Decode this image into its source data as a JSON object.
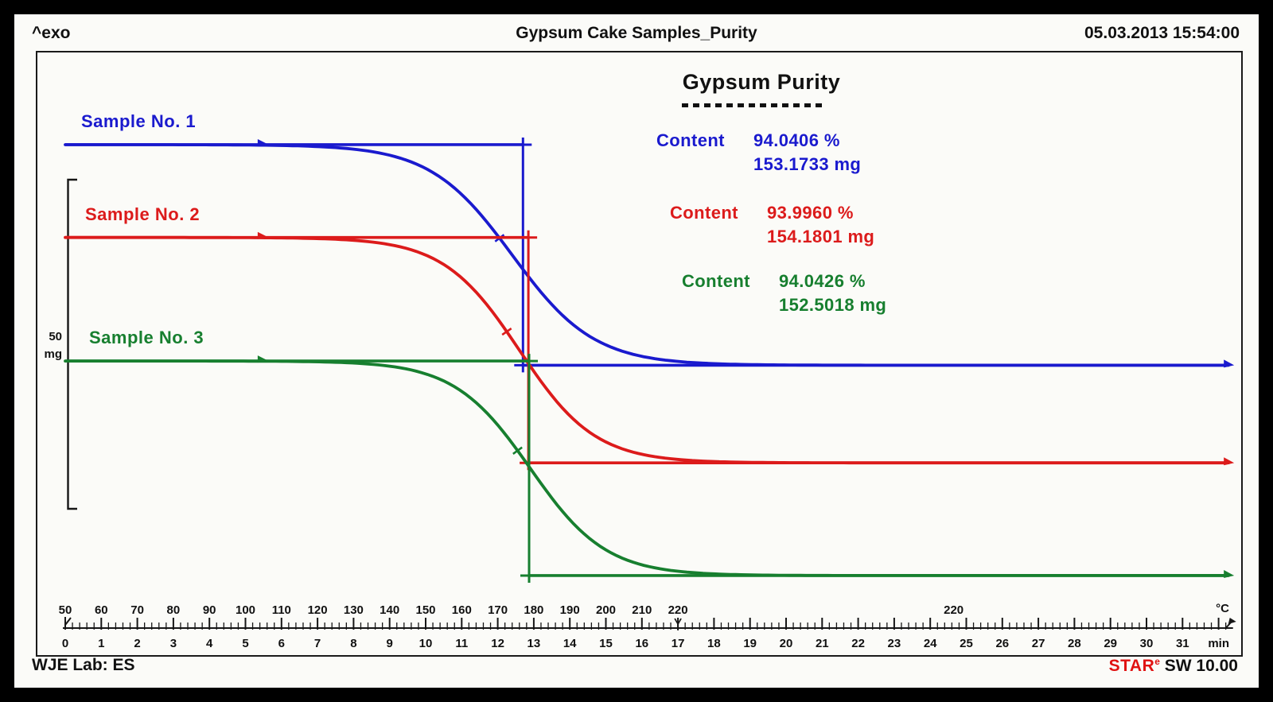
{
  "header": {
    "exo_label": "^exo",
    "title": "Gypsum Cake Samples_Purity",
    "datetime": "05.03.2013 15:54:00"
  },
  "footer": {
    "lab": "WJE Lab: ES",
    "software": {
      "brand": "STAR",
      "superscript": "e",
      "rest": " SW 10.00",
      "brand_color": "#e01212"
    }
  },
  "annotation": {
    "title": "Gypsum Purity",
    "entries": [
      {
        "label": "Content",
        "percent": "94.0406 %",
        "mass": "153.1733 mg",
        "color": "#1a1ace"
      },
      {
        "label": "Content",
        "percent": "93.9960 %",
        "mass": "154.1801 mg",
        "color": "#dc1b1b"
      },
      {
        "label": "Content",
        "percent": "94.0426 %",
        "mass": "152.5018 mg",
        "color": "#177f2f"
      }
    ]
  },
  "y_scale": {
    "value": "50",
    "unit": "mg"
  },
  "chart_data": {
    "type": "line",
    "title": "Gypsum Cake Samples_Purity",
    "x_axis": {
      "temperature": {
        "unit": "°C",
        "ticks": [
          50,
          60,
          70,
          80,
          90,
          100,
          110,
          120,
          130,
          140,
          150,
          160,
          170,
          180,
          190,
          200,
          210,
          220
        ],
        "heating_rate_c_per_min": 10,
        "segment_change_min": 17,
        "isothermal_label": "220",
        "isothermal_label_min": 24.65
      },
      "time": {
        "unit": "min",
        "ticks": [
          0,
          1,
          2,
          3,
          4,
          5,
          6,
          7,
          8,
          9,
          10,
          11,
          12,
          13,
          14,
          15,
          16,
          17,
          18,
          19,
          20,
          21,
          22,
          23,
          24,
          25,
          26,
          27,
          28,
          29,
          30,
          31
        ],
        "end_min": 32.4
      }
    },
    "y_axis": {
      "scale_bar_mg": 50,
      "unit": "mg",
      "numeric_labels": false
    },
    "series": [
      {
        "name": "Sample No. 1",
        "color": "#1a1ace",
        "content_percent": 94.0406,
        "content_mg": 153.1733,
        "step_start_min": 6.6,
        "step_mid_min": 12.4,
        "step_end_min": 17.3,
        "marker_min": 12.7,
        "steepness": 0.88,
        "level_start_frac": 0.153,
        "level_end_frac": 0.519,
        "step_height_mg_approx": 33.5
      },
      {
        "name": "Sample No. 2",
        "color": "#dc1b1b",
        "content_percent": 93.996,
        "content_mg": 154.1801,
        "step_start_min": 7.7,
        "step_mid_min": 12.6,
        "step_end_min": 17.5,
        "marker_min": 12.85,
        "steepness": 0.95,
        "level_start_frac": 0.307,
        "level_end_frac": 0.681,
        "step_height_mg_approx": 34.2
      },
      {
        "name": "Sample No. 3",
        "color": "#177f2f",
        "content_percent": 94.0426,
        "content_mg": 152.5018,
        "step_start_min": 8.0,
        "step_mid_min": 12.9,
        "step_end_min": 17.8,
        "marker_min": 12.87,
        "steepness": 0.95,
        "level_start_frac": 0.512,
        "level_end_frac": 0.868,
        "step_height_mg_approx": 32.6
      }
    ]
  }
}
